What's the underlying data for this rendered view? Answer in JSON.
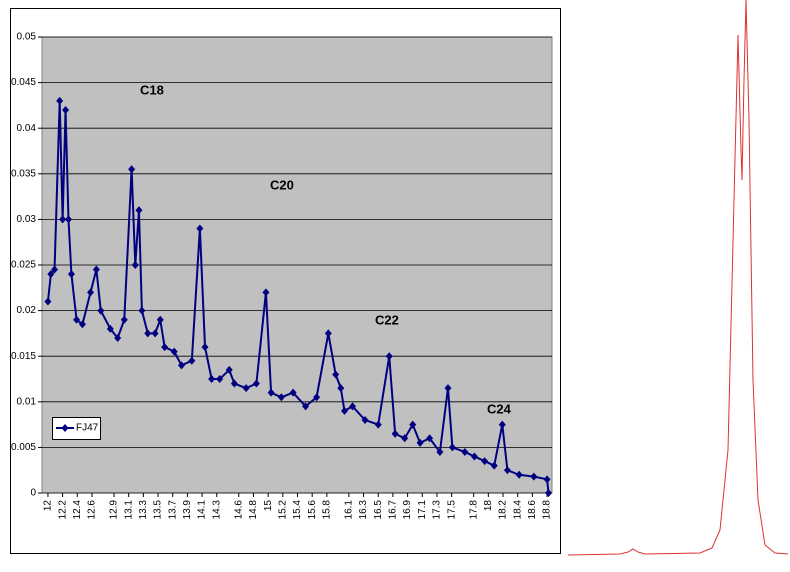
{
  "chart_data": {
    "type": "line",
    "x": [
      12.0,
      12.04,
      12.09,
      12.16,
      12.2,
      12.24,
      12.28,
      12.32,
      12.39,
      12.47,
      12.58,
      12.66,
      12.72,
      12.85,
      12.95,
      13.04,
      13.14,
      13.19,
      13.24,
      13.28,
      13.36,
      13.46,
      13.53,
      13.59,
      13.72,
      13.82,
      13.96,
      14.07,
      14.14,
      14.23,
      14.34,
      14.47,
      14.54,
      14.7,
      14.84,
      14.97,
      15.04,
      15.18,
      15.34,
      15.51,
      15.66,
      15.82,
      15.92,
      15.99,
      16.04,
      16.15,
      16.32,
      16.5,
      16.65,
      16.73,
      16.86,
      16.97,
      17.07,
      17.2,
      17.34,
      17.45,
      17.51,
      17.68,
      17.81,
      17.95,
      18.08,
      18.19,
      18.26,
      18.42,
      18.62,
      18.8,
      18.82
    ],
    "series": [
      {
        "name": "FJ47",
        "color": "#000080",
        "values": [
          0.021,
          0.024,
          0.0245,
          0.043,
          0.03,
          0.042,
          0.03,
          0.024,
          0.019,
          0.0185,
          0.022,
          0.0245,
          0.02,
          0.018,
          0.017,
          0.019,
          0.0355,
          0.025,
          0.031,
          0.02,
          0.0175,
          0.0175,
          0.019,
          0.016,
          0.0155,
          0.014,
          0.0145,
          0.029,
          0.016,
          0.0125,
          0.0125,
          0.0135,
          0.012,
          0.0115,
          0.012,
          0.022,
          0.011,
          0.0105,
          0.011,
          0.0095,
          0.0105,
          0.0175,
          0.013,
          0.0115,
          0.009,
          0.0095,
          0.008,
          0.0075,
          0.015,
          0.0065,
          0.006,
          0.0075,
          0.0055,
          0.006,
          0.0045,
          0.0115,
          0.005,
          0.0045,
          0.004,
          0.0035,
          0.003,
          0.0075,
          0.0025,
          0.002,
          0.0018,
          0.0015,
          0
        ]
      }
    ],
    "xlim": [
      11.96,
      18.84
    ],
    "xticks": [
      12,
      12.2,
      12.4,
      12.6,
      12.9,
      13.1,
      13.3,
      13.5,
      13.7,
      13.9,
      14.1,
      14.3,
      14.6,
      14.8,
      15,
      15.2,
      15.4,
      15.6,
      15.8,
      16.1,
      16.3,
      16.5,
      16.7,
      16.9,
      17.1,
      17.3,
      17.5,
      17.8,
      18,
      18.2,
      18.4,
      18.6,
      18.8
    ],
    "ylim": [
      0,
      0.05
    ],
    "yticks": [
      0,
      0.005,
      0.01,
      0.015,
      0.02,
      0.025,
      0.03,
      0.035,
      0.04,
      0.045,
      0.05
    ],
    "annotations": [
      "C18",
      "C20",
      "C22",
      "C24"
    ],
    "grid": true,
    "plot_background": "#c0c0c0",
    "legend": "left"
  }
}
